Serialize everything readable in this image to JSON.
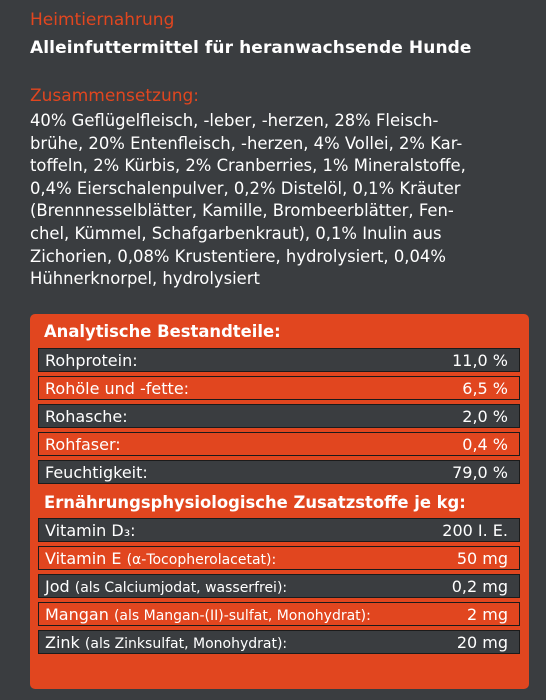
{
  "header": {
    "title": "Heimtiernahrung",
    "subtitle": "Alleinfuttermittel  für heranwachsende Hunde"
  },
  "composition": {
    "title": "Zusammensetzung:",
    "lines": [
      "40% Geflügelfleisch, -leber, -herzen, 28% Fleisch-",
      "brühe, 20% Entenfleisch, -herzen, 4% Vollei, 2% Kar-",
      "toffeln, 2% Kürbis, 2% Cranberries, 1% Mineralstoffe,",
      "0,4% Eierschalenpulver, 0,2% Distelöl, 0,1% Kräuter",
      "(Brennnesselblätter, Kamille, Brombeerblätter, Fen-",
      "chel, Kümmel, Schafgarbenkraut), 0,1% Inulin aus",
      "Zichorien, 0,08% Krustentiere, hydrolysiert, 0,04%",
      "Hühnerknorpel, hydrolysiert"
    ]
  },
  "analytical": {
    "title": "Analytische Bestandteile:",
    "rows": [
      {
        "label": "Rohprotein:",
        "value": "11,0 %"
      },
      {
        "label": "Rohöle und -fette:",
        "value": "6,5 %"
      },
      {
        "label": "Rohasche:",
        "value": "2,0 %"
      },
      {
        "label": "Rohfaser:",
        "value": "0,4 %"
      },
      {
        "label": "Feuchtigkeit:",
        "value": "79,0 %"
      }
    ]
  },
  "additives": {
    "title": "Ernährungsphysiologische Zusatzstoffe je kg:",
    "rows": [
      {
        "label": "Vitamin D₃:",
        "detail": "",
        "value": "200 I. E."
      },
      {
        "label": "Vitamin E ",
        "detail": "(α-Tocopherolacetat):",
        "value": "50 mg"
      },
      {
        "label": "Jod ",
        "detail": "(als Calciumjodat, wasserfrei):",
        "value": "0,2 mg"
      },
      {
        "label": "Mangan ",
        "detail": "(als Mangan-(II)-sulfat, Monohydrat):",
        "value": "2 mg"
      },
      {
        "label": "Zink ",
        "detail": "(als Zinksulfat, Monohydrat):",
        "value": "20 mg"
      }
    ]
  }
}
